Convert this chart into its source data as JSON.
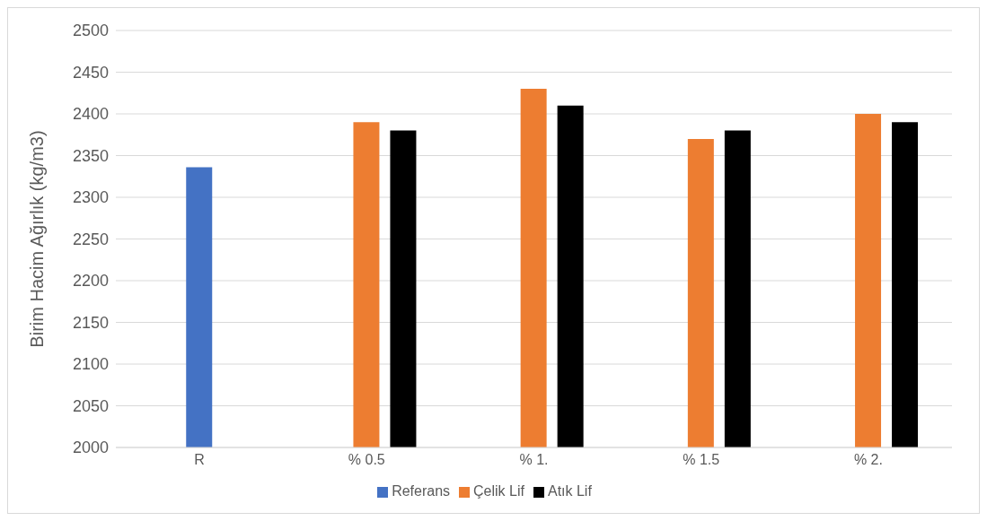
{
  "chart_data": {
    "type": "bar",
    "ylabel": "Birim Hacim Ağırlık (kg/m3)",
    "categories": [
      "R",
      "% 0.5",
      "% 1.",
      "% 1.5",
      "% 2."
    ],
    "series": [
      {
        "name": "Referans",
        "color": "#4472c4",
        "values": [
          null,
          null,
          null,
          null,
          null
        ]
      },
      {
        "name": "Çelik Lif",
        "color": "#ed7d31",
        "colors": [
          "#4472c4",
          "#ed7d31",
          "#ed7d31",
          "#ed7d31",
          "#ed7d31"
        ],
        "values": [
          2336,
          2390,
          2430,
          2370,
          2400
        ]
      },
      {
        "name": "Atık Lif",
        "color": "#000000",
        "values": [
          null,
          2380,
          2410,
          2380,
          2390
        ]
      }
    ],
    "ylim": [
      2000,
      2500
    ],
    "yticks": [
      2000,
      2050,
      2100,
      2150,
      2200,
      2250,
      2300,
      2350,
      2400,
      2450,
      2500
    ],
    "grid": "y",
    "legend": "bottom"
  }
}
